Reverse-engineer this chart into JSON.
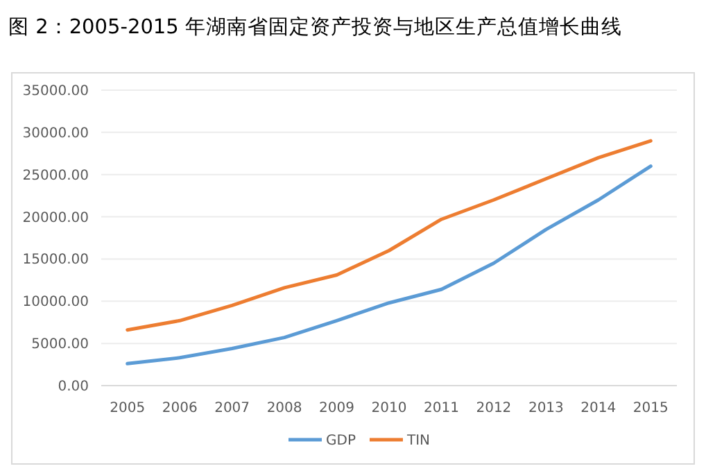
{
  "chart_data": {
    "type": "line",
    "title": "图 2：2005-2015 年湖南省固定资产投资与地区生产总值增长曲线",
    "categories": [
      "2005",
      "2006",
      "2007",
      "2008",
      "2009",
      "2010",
      "2011",
      "2012",
      "2013",
      "2014",
      "2015"
    ],
    "series": [
      {
        "name": "GDP",
        "color": "#5b9bd5",
        "values": [
          2600,
          3300,
          4400,
          5700,
          7700,
          9800,
          11400,
          14500,
          18500,
          22000,
          26000
        ]
      },
      {
        "name": "TIN",
        "color": "#ed7d31",
        "values": [
          6600,
          7700,
          9500,
          11600,
          13100,
          16000,
          19700,
          22000,
          24500,
          27000,
          29000
        ]
      }
    ],
    "ylim": [
      0,
      35000
    ],
    "yticks": [
      {
        "value": 0,
        "label": "0.00"
      },
      {
        "value": 5000,
        "label": "5000.00"
      },
      {
        "value": 10000,
        "label": "10000.00"
      },
      {
        "value": 15000,
        "label": "15000.00"
      },
      {
        "value": 20000,
        "label": "20000.00"
      },
      {
        "value": 25000,
        "label": "25000.00"
      },
      {
        "value": 30000,
        "label": "30000.00"
      },
      {
        "value": 35000,
        "label": "35000.00"
      }
    ],
    "grid": "y",
    "legend": "bottom",
    "marker": "none",
    "line_style": "solid"
  }
}
